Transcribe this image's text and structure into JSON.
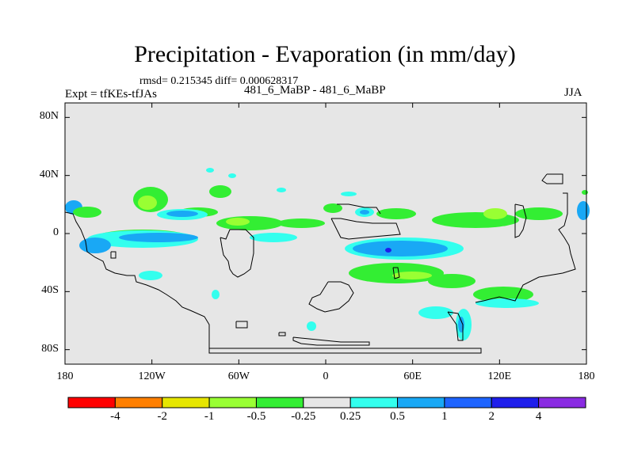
{
  "header": {
    "title": "Precipitation - Evaporation (in mm/day)",
    "stats": "rmsd= 0.215345 diff= 0.000628317",
    "expt": "Expt = tfKEs-tfJAs",
    "runs": "481_6_MaBP - 481_6_MaBP",
    "season": "JJA"
  },
  "axes": {
    "y_ticks": [
      {
        "label": "80N",
        "lat": 80
      },
      {
        "label": "40N",
        "lat": 40
      },
      {
        "label": "0",
        "lat": 0
      },
      {
        "label": "40S",
        "lat": -40
      },
      {
        "label": "80S",
        "lat": -80
      }
    ],
    "x_ticks": [
      {
        "label": "180",
        "lon": -180
      },
      {
        "label": "120W",
        "lon": -120
      },
      {
        "label": "60W",
        "lon": -60
      },
      {
        "label": "0",
        "lon": 0
      },
      {
        "label": "60E",
        "lon": 60
      },
      {
        "label": "120E",
        "lon": 120
      },
      {
        "label": "180",
        "lon": 180
      }
    ],
    "lon_range": [
      -180,
      180
    ],
    "lat_range": [
      -90,
      90
    ]
  },
  "colorbar": {
    "colors": [
      "#ff0000",
      "#ff7f00",
      "#e6e600",
      "#99ff33",
      "#33ee33",
      "#e6e6e6",
      "#33ffee",
      "#19a8f5",
      "#1e64ff",
      "#1e1eeb",
      "#8a2be2"
    ],
    "labels": [
      "-4",
      "-2",
      "-1",
      "-0.5",
      "-0.25",
      "0.25",
      "0.5",
      "1",
      "2",
      "4"
    ]
  },
  "colors": {
    "background_neutral": "#e6e6e6",
    "coastline": "#000000"
  }
}
